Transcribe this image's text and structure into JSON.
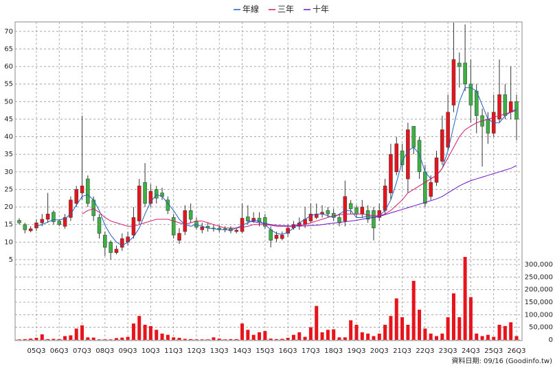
{
  "chart_data": {
    "type": "candlestick",
    "categories": [
      null,
      null,
      null,
      "05Q3",
      null,
      null,
      null,
      "06Q3",
      null,
      null,
      null,
      "07Q3",
      null,
      null,
      null,
      "08Q3",
      null,
      null,
      null,
      "09Q3",
      null,
      null,
      null,
      "10Q3",
      null,
      null,
      null,
      "11Q3",
      null,
      null,
      null,
      "12Q3",
      null,
      null,
      null,
      "13Q3",
      null,
      null,
      null,
      "14Q3",
      null,
      null,
      null,
      "15Q3",
      null,
      null,
      null,
      "16Q3",
      null,
      null,
      null,
      "17Q3",
      null,
      null,
      null,
      "18Q3",
      null,
      null,
      null,
      "19Q3",
      null,
      null,
      null,
      "20Q3",
      null,
      null,
      null,
      "21Q3",
      null,
      null,
      null,
      "22Q3",
      null,
      null,
      null,
      "23Q3",
      null,
      null,
      null,
      "24Q3",
      null,
      null,
      null,
      "25Q3",
      null,
      null,
      null,
      "26Q3"
    ],
    "open": [
      16.2,
      15,
      13.2,
      14,
      15.5,
      16.5,
      18.5,
      16,
      14.5,
      17,
      21,
      24,
      28,
      22,
      17,
      12,
      10,
      7,
      8.5,
      10,
      12,
      16,
      27,
      21,
      25,
      24,
      22,
      17,
      10.5,
      13,
      19,
      16,
      13.5,
      14.5,
      14,
      14,
      13.8,
      13.8,
      13,
      13,
      17.2,
      16,
      16.8,
      17,
      13.5,
      11,
      11,
      12.5,
      14,
      14.5,
      15,
      16,
      17,
      18,
      19,
      18.2,
      17,
      16,
      21,
      19.8,
      18,
      19,
      19,
      17,
      19,
      24,
      30,
      36,
      28,
      43,
      39,
      30,
      23,
      27,
      33,
      37,
      49,
      61,
      61,
      55,
      53,
      46,
      45,
      41,
      45,
      52,
      47,
      50
    ],
    "high": [
      16.8,
      15.5,
      14.5,
      16.5,
      18,
      24,
      19,
      16.5,
      18,
      23,
      26,
      46,
      29,
      23,
      18,
      13,
      10.5,
      9,
      12.5,
      13,
      20,
      28,
      32.5,
      26.5,
      26,
      25.5,
      23,
      18,
      14,
      20.5,
      21,
      17,
      15.5,
      15.5,
      15,
      14.8,
      14.5,
      14.5,
      14.2,
      21,
      20.5,
      18.5,
      18.5,
      18,
      14.5,
      13,
      13,
      15,
      16,
      17,
      20,
      21,
      21,
      20.5,
      20,
      19.5,
      18,
      27.5,
      22,
      20.5,
      22,
      20.5,
      20,
      21,
      28,
      38,
      40,
      38,
      44,
      43,
      40,
      32,
      29,
      36,
      46,
      52,
      72.5,
      64,
      72,
      62,
      55,
      48,
      47,
      52,
      62,
      55,
      60,
      52
    ],
    "low": [
      15,
      12.5,
      12.8,
      13.2,
      14.5,
      15.5,
      15,
      14.5,
      13.8,
      16,
      20,
      22,
      20,
      16,
      11,
      6,
      5,
      6.5,
      7.5,
      9,
      11,
      15,
      20,
      20,
      21,
      22,
      18,
      11,
      9.5,
      12,
      15.5,
      13.5,
      12.5,
      13,
      13,
      12.8,
      12.8,
      12.5,
      12.5,
      12.5,
      15,
      15.5,
      14.5,
      13.8,
      8.5,
      10,
      10.5,
      11.5,
      13.5,
      13.5,
      14,
      15.5,
      16.5,
      17,
      17,
      16,
      14.5,
      14.5,
      18,
      17,
      17,
      15.5,
      10.5,
      16,
      18,
      22,
      29,
      30,
      24,
      35,
      28,
      20,
      22,
      26,
      32,
      36,
      47,
      54,
      53,
      44,
      41,
      31.5,
      38,
      40,
      44,
      45,
      45,
      39
    ],
    "close": [
      15.5,
      13.5,
      13.8,
      15.5,
      16.5,
      18,
      15.8,
      15,
      17,
      22,
      25,
      26,
      21,
      17.5,
      12.5,
      8.5,
      7,
      8,
      11,
      11.5,
      17,
      26,
      21,
      24.5,
      22.5,
      23,
      19,
      12,
      12.5,
      19,
      16.5,
      14.2,
      14.3,
      14,
      13.8,
      13.5,
      13.5,
      13.2,
      13.4,
      16.8,
      16,
      16.8,
      15.8,
      14.5,
      10.5,
      12,
      12,
      14,
      15,
      15.5,
      16.5,
      18,
      18,
      18.5,
      18,
      17,
      15.5,
      23,
      19.5,
      18,
      20,
      16.5,
      14,
      19,
      26,
      35,
      38,
      32,
      42,
      37,
      30,
      21,
      27,
      34,
      42,
      47,
      62,
      60,
      55,
      49,
      46,
      43,
      41,
      47,
      52,
      46,
      50,
      45
    ],
    "up_color": "#e8141c",
    "down_color": "#3cb043",
    "series": [
      {
        "name": "年線",
        "color": "#1f5fbf",
        "values": [
          null,
          null,
          null,
          14.6,
          15.0,
          15.7,
          16.4,
          16.3,
          16.7,
          18,
          20.5,
          23,
          23.5,
          22,
          19,
          14.8,
          12,
          10,
          9,
          10,
          11.5,
          14,
          18,
          21.5,
          23.5,
          23,
          21,
          19,
          16.5,
          15,
          14.5,
          15,
          14.5,
          14,
          13.8,
          13.6,
          13.5,
          13.4,
          14,
          14.8,
          15.5,
          16.2,
          16,
          15,
          13.5,
          12.5,
          12.2,
          12.8,
          14,
          15.5,
          16.5,
          17.5,
          18,
          18,
          17.5,
          17,
          18,
          19,
          19,
          17,
          17,
          17.5,
          17,
          17.5,
          19,
          22,
          27,
          33,
          36,
          37,
          35,
          30,
          28,
          29,
          31,
          36,
          43,
          50,
          54,
          54,
          53,
          49,
          45,
          44,
          44,
          46,
          47,
          48
        ]
      },
      {
        "name": "三年",
        "color": "#d6146e",
        "values": [
          null,
          null,
          null,
          null,
          null,
          null,
          null,
          null,
          null,
          null,
          null,
          18,
          19,
          19.5,
          18.5,
          17,
          16,
          15.5,
          15,
          14.5,
          14.5,
          15,
          15.5,
          16,
          16.5,
          16.5,
          16.5,
          16,
          15.5,
          15,
          15.5,
          16,
          16,
          15.5,
          15,
          14.5,
          14,
          14,
          14,
          14.2,
          14.5,
          15,
          15,
          15,
          14.8,
          14.5,
          14.5,
          14.5,
          14.5,
          14.8,
          15,
          15.5,
          16,
          16.5,
          17,
          17.5,
          17.8,
          18,
          18,
          18,
          18,
          17.8,
          17.5,
          17.5,
          18,
          19,
          20.5,
          22,
          24,
          25,
          26,
          27,
          28,
          29,
          31,
          34,
          37,
          40,
          42,
          43,
          44,
          44.5,
          45,
          45.5,
          46,
          46.5,
          47,
          47.5
        ]
      },
      {
        "name": "十年",
        "color": "#6a16c8",
        "values": [
          null,
          null,
          null,
          null,
          null,
          null,
          null,
          null,
          null,
          null,
          null,
          null,
          null,
          null,
          null,
          null,
          null,
          null,
          null,
          null,
          null,
          null,
          null,
          null,
          null,
          null,
          null,
          null,
          null,
          null,
          null,
          null,
          null,
          null,
          null,
          null,
          null,
          null,
          null,
          null,
          16,
          15.8,
          15.5,
          15.3,
          15,
          14.8,
          14.7,
          14.6,
          14.6,
          14.6,
          14.6,
          14.7,
          14.8,
          15,
          15.2,
          15.4,
          15.6,
          15.8,
          16,
          16.2,
          16.5,
          16.8,
          17,
          17.3,
          17.8,
          18.3,
          18.8,
          19.3,
          19.8,
          20.3,
          20.8,
          21.3,
          21.8,
          22.3,
          23,
          24,
          25,
          26,
          26.8,
          27.5,
          28,
          28.5,
          29,
          29.5,
          30,
          30.5,
          31,
          31.8
        ]
      }
    ],
    "ylim": [
      3,
      72.7
    ],
    "yticks": [
      5,
      10,
      15,
      20,
      25,
      30,
      35,
      40,
      45,
      50,
      55,
      60,
      65,
      70
    ],
    "volume": [
      2000,
      3000,
      5000,
      8000,
      22000,
      3000,
      4000,
      3000,
      15000,
      18000,
      45000,
      58000,
      10000,
      9000,
      2000,
      2000,
      2000,
      7000,
      9000,
      12000,
      65000,
      95000,
      60000,
      55000,
      40000,
      25000,
      20000,
      10000,
      8000,
      4000,
      3000,
      2000,
      2000,
      2000,
      10000,
      5000,
      2000,
      3000,
      3000,
      65000,
      40000,
      20000,
      30000,
      35000,
      5000,
      3000,
      4000,
      8000,
      20000,
      30000,
      12000,
      50000,
      135000,
      30000,
      40000,
      42000,
      10000,
      10000,
      78000,
      60000,
      30000,
      25000,
      15000,
      25000,
      60000,
      95000,
      165000,
      90000,
      60000,
      235000,
      120000,
      45000,
      25000,
      15000,
      25000,
      90000,
      185000,
      90000,
      330000,
      170000,
      25000,
      15000,
      20000,
      12000,
      60000,
      55000,
      70000,
      15000
    ],
    "volume_color": "#e8141c",
    "y2lim": [
      0,
      300000
    ],
    "y2ticks": [
      0,
      {
        "value": 50000,
        "label": "50,000"
      },
      {
        "value": 100000,
        "label": "100,000"
      },
      {
        "value": 150000,
        "label": "150,000"
      },
      {
        "value": 200000,
        "label": "200,000"
      },
      {
        "value": 250000,
        "label": "250,000"
      },
      {
        "value": 300000,
        "label": "300,000"
      }
    ],
    "grid": true,
    "source": "資料日期: 09/16 (Goodinfo.tw)"
  }
}
